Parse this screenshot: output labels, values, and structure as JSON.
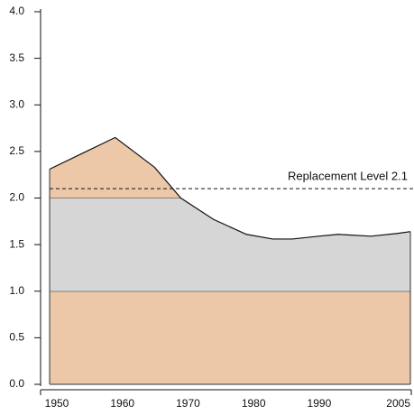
{
  "chart_data": {
    "type": "area",
    "x": [
      1950,
      1955,
      1960,
      1966,
      1970,
      1975,
      1980,
      1984,
      1987,
      1991,
      1994,
      1999,
      2003,
      2005
    ],
    "values": [
      2.31,
      2.48,
      2.65,
      2.33,
      2.0,
      1.77,
      1.61,
      1.56,
      1.56,
      1.59,
      1.61,
      1.59,
      1.62,
      1.64
    ],
    "line_color": "#111111",
    "bands": [
      {
        "from": 0,
        "to": 1,
        "color": "#ecc8a8"
      },
      {
        "from": 1,
        "to": 2,
        "color": "#d6d6d6"
      },
      {
        "from": 2,
        "to": 4,
        "color": "#ecc8a8"
      }
    ],
    "reference": {
      "value": 2.1,
      "label": "Replacement Level 2.1"
    },
    "xlim": [
      1950,
      2005
    ],
    "xticks": [
      1950,
      1960,
      1970,
      1980,
      1990,
      2005
    ],
    "ylim": [
      0,
      4
    ],
    "yticks": [
      {
        "value": 0,
        "label": "0.0"
      },
      {
        "value": 0.5,
        "label": "0.5"
      },
      {
        "value": 1,
        "label": "1.0"
      },
      {
        "value": 1.5,
        "label": "1.5"
      },
      {
        "value": 2,
        "label": "2.0"
      },
      {
        "value": 2.5,
        "label": "2.5"
      },
      {
        "value": 3,
        "label": "3.0"
      },
      {
        "value": 3.5,
        "label": "3.5"
      },
      {
        "value": 4,
        "label": "4.0"
      }
    ]
  }
}
